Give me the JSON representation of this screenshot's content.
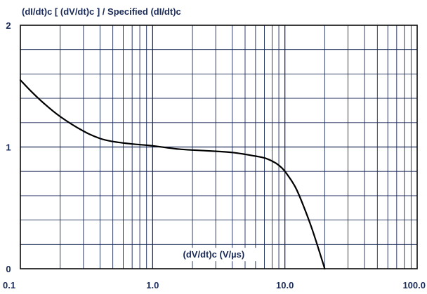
{
  "chart_data": {
    "type": "line",
    "title": "(dI/dt)c [ (dV/dt)c ] / Specified (dI/dt)c",
    "xlabel": "(dV/dt)c (V/µs)",
    "ylabel": "",
    "xscale": "log",
    "xlim": [
      0.1,
      100.0
    ],
    "ylim": [
      0,
      2
    ],
    "grid": true,
    "x_ticks": [
      "0.1",
      "1.0",
      "10.0",
      "100.0"
    ],
    "y_ticks": [
      "0",
      "1",
      "2"
    ],
    "series": [
      {
        "x": [
          0.1,
          0.12,
          0.15,
          0.2,
          0.3,
          0.4,
          0.5,
          0.7,
          1.0,
          1.5,
          2.0,
          3.0,
          4.0,
          5.0,
          6.0,
          7.0,
          8.0,
          9.0,
          10.0,
          12.0,
          14.0,
          16.0,
          18.0,
          20.0
        ],
        "values": [
          1.55,
          1.46,
          1.36,
          1.25,
          1.13,
          1.07,
          1.045,
          1.025,
          1.01,
          0.985,
          0.975,
          0.965,
          0.955,
          0.94,
          0.925,
          0.91,
          0.885,
          0.85,
          0.8,
          0.67,
          0.5,
          0.33,
          0.16,
          0.0
        ]
      }
    ]
  },
  "colors": {
    "curve": "#000000",
    "major_grid": "#1a2a57",
    "minor_grid": "#1a2a57",
    "frame": "#0b0b0b",
    "label_text": "#1a2a57",
    "background": "#ffffff"
  }
}
